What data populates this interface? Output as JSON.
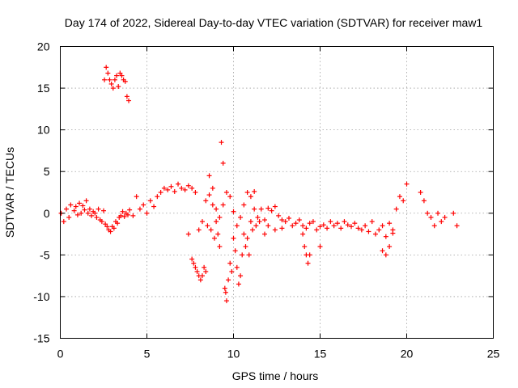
{
  "chart_data": {
    "type": "scatter",
    "title": "Day 174 of 2022, Sidereal Day-to-day VTEC variation (SDTVAR) for receiver maw1",
    "xlabel": "GPS time / hours",
    "ylabel": "SDTVAR / TECUs",
    "xlim": [
      0,
      25
    ],
    "ylim": [
      -15,
      20
    ],
    "xticks": [
      0,
      5,
      10,
      15,
      20,
      25
    ],
    "yticks": [
      -15,
      -10,
      -5,
      0,
      5,
      10,
      15,
      20
    ],
    "grid": true,
    "marker": "+",
    "color": "#ff0000",
    "series": [
      {
        "name": "maw1",
        "x": [
          0.05,
          0.2,
          0.35,
          0.5,
          0.6,
          0.8,
          0.9,
          1.0,
          1.1,
          1.2,
          1.3,
          1.4,
          1.5,
          1.6,
          1.7,
          1.8,
          1.9,
          2.0,
          2.1,
          2.2,
          2.3,
          2.4,
          2.5,
          2.6,
          2.7,
          2.8,
          2.9,
          3.0,
          3.1,
          3.2,
          3.3,
          3.4,
          3.5,
          3.6,
          3.7,
          3.8,
          3.9,
          4.0,
          4.2,
          4.4,
          4.6,
          4.8,
          5.0,
          5.2,
          5.4,
          5.6,
          5.8,
          6.0,
          6.2,
          6.4,
          6.6,
          6.8,
          7.0,
          7.2,
          7.4,
          7.6,
          7.8,
          8.0,
          8.2,
          8.4,
          8.6,
          8.8,
          9.0,
          9.2,
          9.4,
          9.6,
          9.8,
          10.0,
          10.2,
          10.4,
          10.6,
          10.8,
          11.0,
          11.2,
          11.4,
          11.6,
          11.8,
          12.0,
          12.2,
          12.4,
          12.6,
          12.8,
          13.0,
          13.2,
          13.4,
          13.6,
          13.8,
          14.0,
          14.2,
          14.4,
          14.6,
          14.8,
          15.0,
          15.2,
          15.4,
          15.6,
          15.8,
          16.0,
          16.2,
          16.4,
          16.6,
          16.8,
          17.0,
          17.2,
          17.4,
          17.6,
          17.8,
          18.0,
          18.2,
          18.4,
          18.6,
          18.8,
          19.0,
          19.2,
          19.4,
          19.6,
          19.8,
          20.0,
          20.8,
          21.0,
          21.2,
          21.4,
          21.6,
          21.8,
          22.0,
          22.2,
          22.7,
          22.9,
          2.55,
          2.65,
          2.75,
          2.85,
          2.95,
          3.05,
          3.15,
          3.25,
          3.35,
          3.45,
          3.55,
          3.65,
          3.75,
          3.85,
          3.95,
          7.4,
          7.6,
          7.7,
          7.8,
          7.9,
          8.0,
          8.1,
          8.2,
          8.3,
          8.4,
          8.5,
          8.6,
          8.7,
          8.8,
          8.9,
          9.0,
          9.1,
          9.2,
          9.3,
          9.4,
          9.5,
          9.55,
          9.6,
          9.7,
          9.8,
          9.9,
          10.0,
          10.1,
          10.2,
          10.3,
          10.4,
          10.5,
          10.6,
          10.7,
          10.8,
          10.9,
          11.0,
          11.1,
          11.2,
          11.3,
          11.5,
          11.8,
          12.0,
          12.4,
          12.8,
          14.0,
          14.1,
          14.2,
          14.3,
          14.4,
          15.0,
          18.6,
          18.8,
          19.0,
          19.2
        ],
        "y": [
          0.0,
          -1.0,
          0.5,
          -0.5,
          1.0,
          0.3,
          0.8,
          -0.2,
          1.2,
          0.0,
          0.9,
          0.4,
          1.5,
          0.0,
          0.5,
          -0.3,
          0.2,
          0.0,
          -0.5,
          0.5,
          -0.8,
          -1.0,
          0.3,
          -1.3,
          -1.6,
          -2.0,
          -2.2,
          -1.6,
          -1.8,
          -1.0,
          -1.2,
          -0.5,
          -0.3,
          0.2,
          -0.4,
          0.0,
          -0.2,
          0.4,
          -0.3,
          2.0,
          0.5,
          1.0,
          0.0,
          1.5,
          0.8,
          2.0,
          2.5,
          3.0,
          2.8,
          3.2,
          2.6,
          3.5,
          3.0,
          2.8,
          3.3,
          3.0,
          2.5,
          -2.0,
          -1.0,
          1.5,
          2.2,
          3.0,
          0.5,
          -0.5,
          1.0,
          2.5,
          2.0,
          0.2,
          -1.5,
          -0.5,
          1.0,
          2.5,
          2.0,
          2.6,
          -0.5,
          0.5,
          -0.8,
          0.6,
          0.3,
          0.8,
          -0.3,
          -0.8,
          -1.0,
          -0.6,
          -1.5,
          -1.2,
          -0.8,
          -1.5,
          -1.8,
          -1.2,
          -1.0,
          -2.0,
          -1.6,
          -1.4,
          -1.8,
          -1.0,
          -1.5,
          -1.2,
          -1.8,
          -1.0,
          -1.4,
          -1.6,
          -1.2,
          -1.8,
          -2.0,
          -1.5,
          -2.2,
          -1.0,
          -2.5,
          -2.0,
          -1.5,
          -2.8,
          -1.2,
          -2.4,
          0.5,
          2.0,
          1.5,
          3.5,
          2.5,
          1.5,
          0.0,
          -0.5,
          -1.5,
          0.0,
          -1.0,
          -0.5,
          0.0,
          -1.5,
          16.0,
          17.5,
          16.8,
          16.0,
          15.5,
          15.0,
          16.0,
          16.5,
          15.2,
          16.8,
          16.5,
          16.0,
          15.8,
          14.0,
          13.5,
          -2.5,
          -5.5,
          -6.0,
          -6.5,
          -7.0,
          -7.5,
          -8.0,
          -7.5,
          -6.5,
          -7.0,
          -1.5,
          4.5,
          -2.0,
          1.0,
          -3.0,
          -1.0,
          -2.5,
          -4.0,
          8.5,
          6.0,
          -9.0,
          -9.5,
          -10.5,
          -8.0,
          -6.0,
          -7.0,
          -3.0,
          -4.5,
          -6.5,
          -8.5,
          -7.5,
          -5.0,
          -2.5,
          -4.0,
          -3.0,
          -5.0,
          -1.0,
          -2.0,
          0.5,
          -1.5,
          -1.0,
          -2.5,
          -1.5,
          -2.0,
          -1.8,
          -2.5,
          -4.0,
          -5.0,
          -6.0,
          -5.0,
          -4.0,
          -4.5,
          -5.0,
          -4.0,
          -2.0
        ]
      }
    ]
  }
}
